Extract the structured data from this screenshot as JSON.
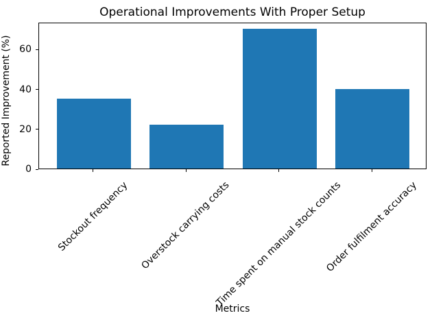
{
  "chart_data": {
    "type": "bar",
    "title": "Operational Improvements With Proper Setup",
    "xlabel": "Metrics",
    "ylabel": "Reported Improvement (%)",
    "categories": [
      "Stockout frequency",
      "Overstock carrying costs",
      "Time spent on manual stock counts",
      "Order fulfilment accuracy"
    ],
    "values": [
      35,
      22,
      70,
      40
    ],
    "yticks": [
      0,
      20,
      40,
      60
    ],
    "ylim": [
      0,
      73.5
    ],
    "bar_width_fraction": 0.8,
    "tick_label_rotation_deg": 45,
    "grid": false,
    "bar_color": "#1f77b4",
    "axis_color": "#000000",
    "text_color": "#000000",
    "background_color": "#ffffff"
  }
}
